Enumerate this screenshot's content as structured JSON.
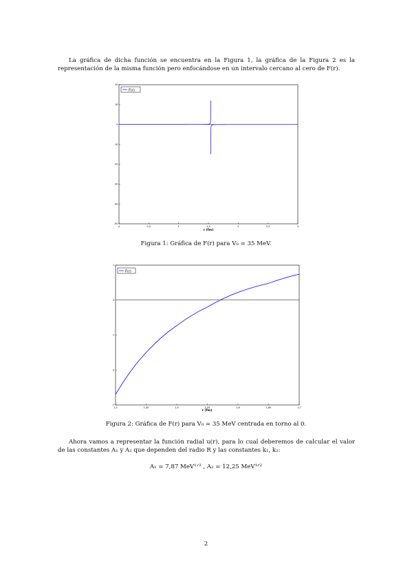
{
  "paragraph1": "La gráfica de dicha función se encuentra en la Figura 1, la gráfica de la Figura 2 es la representación de la misma función pero enfocándose en un intervalo cercano al cero de F(r).",
  "figure1": {
    "caption": "Figura 1: Gráfica de F(r) para V₀ = 35 MeV.",
    "chart_data": {
      "type": "line",
      "xlabel": "r (fm)",
      "legend": [
        "F(r)"
      ],
      "legend_position": "top-left",
      "xlim": [
        0,
        3
      ],
      "ylim": [
        -50,
        20
      ],
      "xticks": [
        "0",
        "0,5",
        "1",
        "1,5",
        "2",
        "2,5",
        "3"
      ],
      "yticks": [
        "20",
        "10",
        "0",
        "-10",
        "-20",
        "-30",
        "-40",
        "-50"
      ],
      "asymptote_x": 1.54,
      "series": [
        {
          "name": "F(r)",
          "color": "#1a1aff"
        }
      ]
    }
  },
  "figure2": {
    "caption": "Figura 2: Gráfica de F(r) para V₀ = 35 MeV centrada en torno al 0.",
    "chart_data": {
      "type": "line",
      "xlabel": "r (fm)",
      "legend": [
        "F(r)"
      ],
      "legend_position": "top-left",
      "xlim": [
        1.4,
        1.7
      ],
      "ylim": [
        -3,
        1
      ],
      "xticks": [
        "1,4",
        "1,45",
        "1,5",
        "1,55",
        "1,6",
        "1,65",
        "1,7"
      ],
      "yticks": [
        "1",
        "0",
        "-1",
        "-2",
        "-3"
      ],
      "series": [
        {
          "name": "F(r)",
          "color": "#1a1aff",
          "x": [
            1.4,
            1.45,
            1.5,
            1.55,
            1.6,
            1.65,
            1.7
          ],
          "y": [
            -2.7,
            -1.5,
            -0.73,
            -0.2,
            0.22,
            0.48,
            0.74
          ]
        }
      ]
    }
  },
  "paragraph2": "Ahora vamos a representar la función radial u(r), para lo cual deberemos de calcular el valor de las constantes A₁ y A₂ que dependen del radio R y las constantes k₁, k₂:",
  "equation": "A₁ = 7,87 MeV¹ᐟ²   ,   A₂ = 12,25 MeV¹ᐟ²",
  "page_number": "2"
}
